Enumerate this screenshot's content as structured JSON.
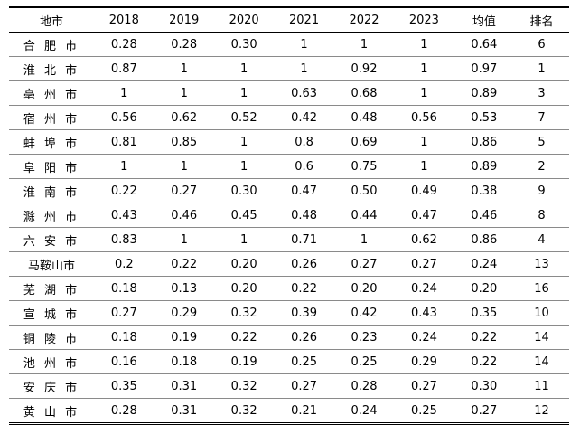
{
  "table": {
    "headers": [
      "地市",
      "2018",
      "2019",
      "2020",
      "2021",
      "2022",
      "2023",
      "均值",
      "排名"
    ],
    "rows": [
      [
        "合 肥 市",
        "0.28",
        "0.28",
        "0.30",
        "1",
        "1",
        "1",
        "0.64",
        "6"
      ],
      [
        "淮 北 市",
        "0.87",
        "1",
        "1",
        "1",
        "0.92",
        "1",
        "0.97",
        "1"
      ],
      [
        "亳 州 市",
        "1",
        "1",
        "1",
        "0.63",
        "0.68",
        "1",
        "0.89",
        "3"
      ],
      [
        "宿 州 市",
        "0.56",
        "0.62",
        "0.52",
        "0.42",
        "0.48",
        "0.56",
        "0.53",
        "7"
      ],
      [
        "蚌 埠 市",
        "0.81",
        "0.85",
        "1",
        "0.8",
        "0.69",
        "1",
        "0.86",
        "5"
      ],
      [
        "阜 阳 市",
        "1",
        "1",
        "1",
        "0.6",
        "0.75",
        "1",
        "0.89",
        "2"
      ],
      [
        "淮 南 市",
        "0.22",
        "0.27",
        "0.30",
        "0.47",
        "0.50",
        "0.49",
        "0.38",
        "9"
      ],
      [
        "滁 州 市",
        "0.43",
        "0.46",
        "0.45",
        "0.48",
        "0.44",
        "0.47",
        "0.46",
        "8"
      ],
      [
        "六 安 市",
        "0.83",
        "1",
        "1",
        "0.71",
        "1",
        "0.62",
        "0.86",
        "4"
      ],
      [
        "马鞍山市",
        "0.2",
        "0.22",
        "0.20",
        "0.26",
        "0.27",
        "0.27",
        "0.24",
        "13"
      ],
      [
        "芜 湖 市",
        "0.18",
        "0.13",
        "0.20",
        "0.22",
        "0.20",
        "0.24",
        "0.20",
        "16"
      ],
      [
        "宣 城 市",
        "0.27",
        "0.29",
        "0.32",
        "0.39",
        "0.42",
        "0.43",
        "0.35",
        "10"
      ],
      [
        "铜 陵 市",
        "0.18",
        "0.19",
        "0.22",
        "0.26",
        "0.23",
        "0.24",
        "0.22",
        "14"
      ],
      [
        "池 州 市",
        "0.16",
        "0.18",
        "0.19",
        "0.25",
        "0.25",
        "0.29",
        "0.22",
        "14"
      ],
      [
        "安 庆 市",
        "0.35",
        "0.31",
        "0.32",
        "0.27",
        "0.28",
        "0.27",
        "0.30",
        "11"
      ],
      [
        "黄 山 市",
        "0.28",
        "0.31",
        "0.32",
        "0.21",
        "0.24",
        "0.25",
        "0.27",
        "12"
      ]
    ]
  }
}
